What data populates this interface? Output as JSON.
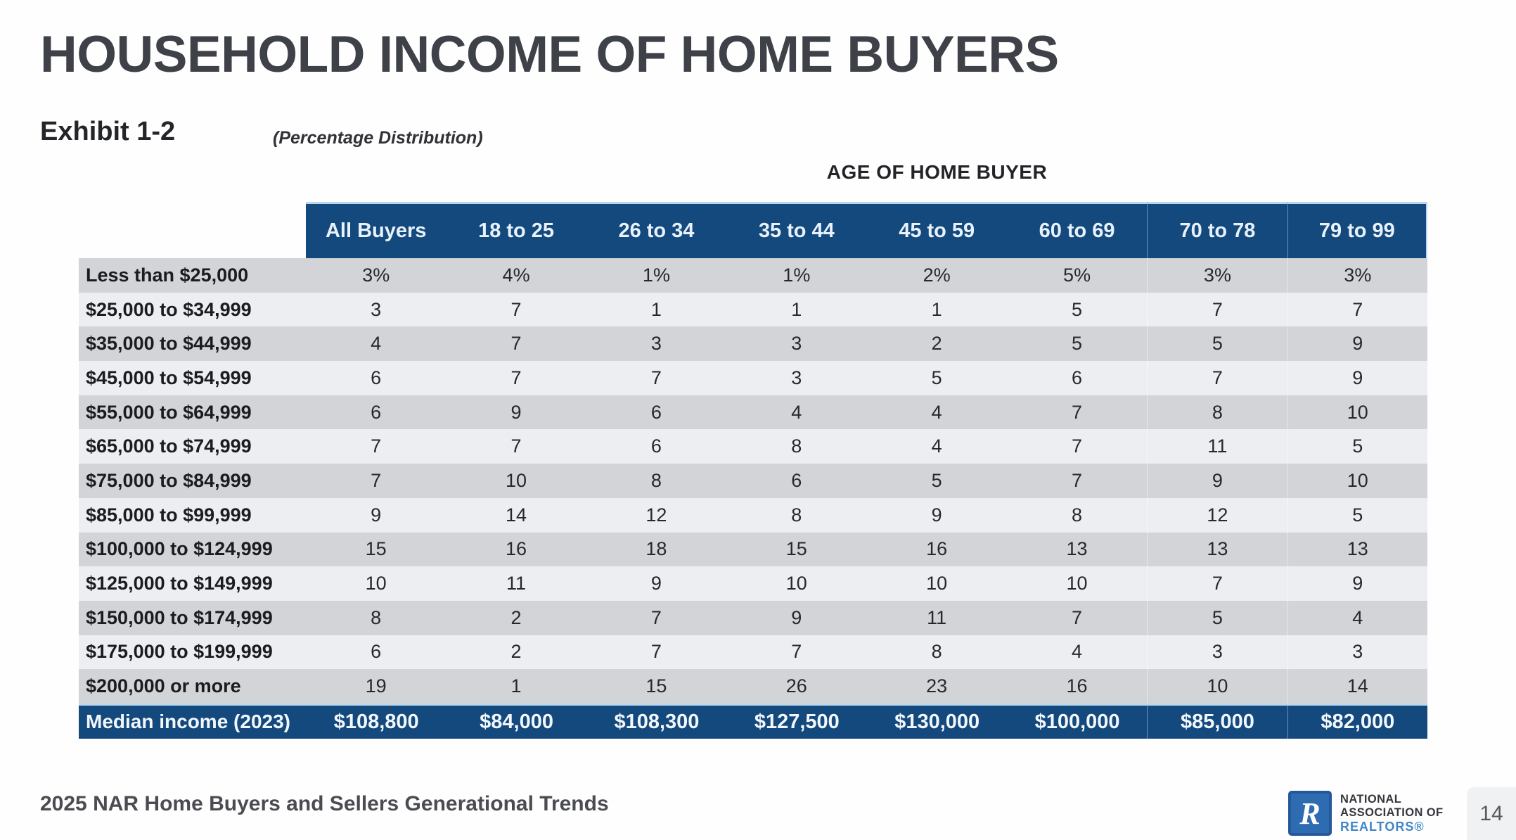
{
  "page": {
    "title": "HOUSEHOLD INCOME OF HOME BUYERS",
    "exhibit": "Exhibit 1-2",
    "subtitle": "(Percentage Distribution)",
    "footer": "2025 NAR Home Buyers and Sellers Generational Trends",
    "page_number": "14"
  },
  "logo": {
    "mark": "R",
    "line1": "NATIONAL",
    "line2": "ASSOCIATION OF",
    "line3": "REALTORS®"
  },
  "table": {
    "group_header": "AGE OF HOME BUYER",
    "columns": [
      "All Buyers",
      "18 to 25",
      "26 to 34",
      "35 to 44",
      "45 to 59",
      "60 to 69",
      "70 to 78",
      "79 to 99"
    ],
    "rows": [
      {
        "label": "Less than $25,000",
        "values": [
          "3%",
          "4%",
          "1%",
          "1%",
          "2%",
          "5%",
          "3%",
          "3%"
        ]
      },
      {
        "label": "$25,000 to $34,999",
        "values": [
          "3",
          "7",
          "1",
          "1",
          "1",
          "5",
          "7",
          "7"
        ]
      },
      {
        "label": "$35,000 to $44,999",
        "values": [
          "4",
          "7",
          "3",
          "3",
          "2",
          "5",
          "5",
          "9"
        ]
      },
      {
        "label": "$45,000 to $54,999",
        "values": [
          "6",
          "7",
          "7",
          "3",
          "5",
          "6",
          "7",
          "9"
        ]
      },
      {
        "label": "$55,000 to $64,999",
        "values": [
          "6",
          "9",
          "6",
          "4",
          "4",
          "7",
          "8",
          "10"
        ]
      },
      {
        "label": "$65,000 to $74,999",
        "values": [
          "7",
          "7",
          "6",
          "8",
          "4",
          "7",
          "11",
          "5"
        ]
      },
      {
        "label": "$75,000 to $84,999",
        "values": [
          "7",
          "10",
          "8",
          "6",
          "5",
          "7",
          "9",
          "10"
        ]
      },
      {
        "label": "$85,000 to $99,999",
        "values": [
          "9",
          "14",
          "12",
          "8",
          "9",
          "8",
          "12",
          "5"
        ]
      },
      {
        "label": "$100,000 to $124,999",
        "values": [
          "15",
          "16",
          "18",
          "15",
          "16",
          "13",
          "13",
          "13"
        ]
      },
      {
        "label": "$125,000 to $149,999",
        "values": [
          "10",
          "11",
          "9",
          "10",
          "10",
          "10",
          "7",
          "9"
        ]
      },
      {
        "label": "$150,000 to $174,999",
        "values": [
          "8",
          "2",
          "7",
          "9",
          "11",
          "7",
          "5",
          "4"
        ]
      },
      {
        "label": "$175,000 to $199,999",
        "values": [
          "6",
          "2",
          "7",
          "7",
          "8",
          "4",
          "3",
          "3"
        ]
      },
      {
        "label": "$200,000 or more",
        "values": [
          "19",
          "1",
          "15",
          "26",
          "23",
          "16",
          "10",
          "14"
        ]
      }
    ],
    "median_row": {
      "label": "Median income (2023)",
      "values": [
        "$108,800",
        "$84,000",
        "$108,300",
        "$127,500",
        "$130,000",
        "$100,000",
        "$85,000",
        "$82,000"
      ]
    }
  },
  "colors": {
    "navy": "#14497e",
    "accent_light_blue": "#b9d8ef",
    "row_dark": "#d2d4d8",
    "row_light": "#eceef1",
    "title_text": "#3e4147",
    "body_text": "#26282c",
    "logo_blue": "#2e6cb2",
    "realtors_blue": "#4187c7",
    "page_box_bg": "#f0f1f3"
  }
}
